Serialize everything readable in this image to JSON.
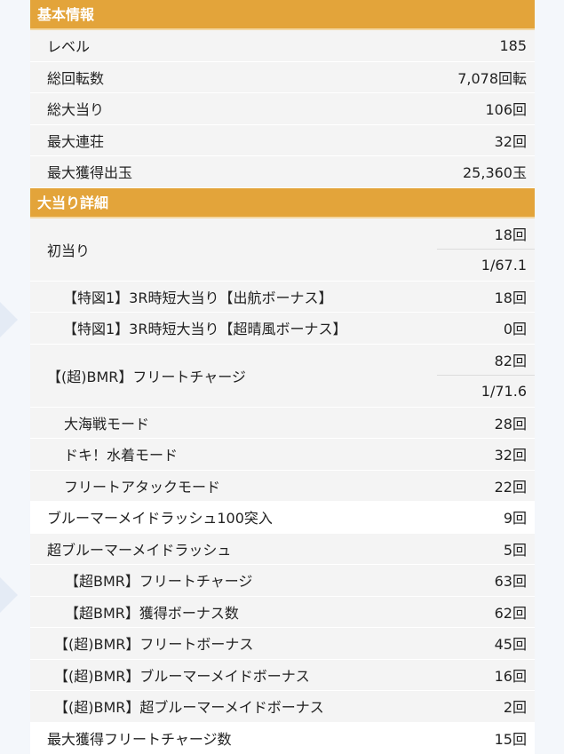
{
  "sections": {
    "basic_title": "基本情報",
    "detail_title": "大当り詳細"
  },
  "basic": [
    {
      "label": "レベル",
      "value": "185"
    },
    {
      "label": "総回転数",
      "value": "7,078回転"
    },
    {
      "label": "総大当り",
      "value": "106回"
    },
    {
      "label": "最大連荘",
      "value": "32回"
    },
    {
      "label": "最大獲得出玉",
      "value": "25,360玉"
    }
  ],
  "detail": {
    "first_hit": {
      "label": "初当り",
      "count": "18回",
      "prob": "1/67.1"
    },
    "tokuzu1": {
      "label": "【特図1】3R時短大当り【出航ボーナス】",
      "value": "18回"
    },
    "tokuzu2": {
      "label": "【特図1】3R時短大当り【超晴風ボーナス】",
      "value": "0回"
    },
    "fleet_charge": {
      "label": "【(超)BMR】フリートチャージ",
      "count": "82回",
      "prob": "1/71.6"
    },
    "modes": [
      {
        "label": "大海戦モード",
        "value": "28回"
      },
      {
        "label": "ドキ！水着モード",
        "value": "32回"
      },
      {
        "label": "フリートアタックモード",
        "value": "22回"
      }
    ],
    "rush100": {
      "label": "ブルーマーメイドラッシュ100突入",
      "value": "9回"
    },
    "super_rush": {
      "label": "超ブルーマーメイドラッシュ",
      "value": "5回"
    },
    "super_sub": [
      {
        "label": "【超BMR】フリートチャージ",
        "value": "63回"
      },
      {
        "label": "【超BMR】獲得ボーナス数",
        "value": "62回"
      }
    ],
    "bonuses": [
      {
        "label": "【(超)BMR】フリートボーナス",
        "value": "45回"
      },
      {
        "label": "【(超)BMR】ブルーマーメイドボーナス",
        "value": "16回"
      },
      {
        "label": "【(超)BMR】超ブルーマーメイドボーナス",
        "value": "2回"
      }
    ],
    "max_fleet": {
      "label": "最大獲得フリートチャージ数",
      "value": "15回"
    }
  }
}
